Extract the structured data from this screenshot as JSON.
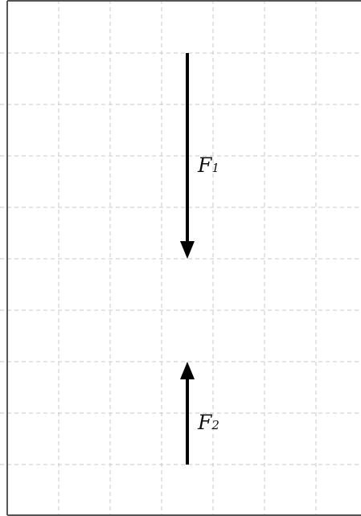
{
  "grid": {
    "line_color": "#c8c8c8",
    "border_color": "#555555",
    "columns": 7,
    "rows": 10
  },
  "forces": [
    {
      "name": "force-f1",
      "symbol": "F",
      "subscript": "1",
      "direction": "down",
      "length_cells": 4,
      "color": "#000000"
    },
    {
      "name": "force-f2",
      "symbol": "F",
      "subscript": "2",
      "direction": "up",
      "length_cells": 2,
      "color": "#000000"
    }
  ]
}
